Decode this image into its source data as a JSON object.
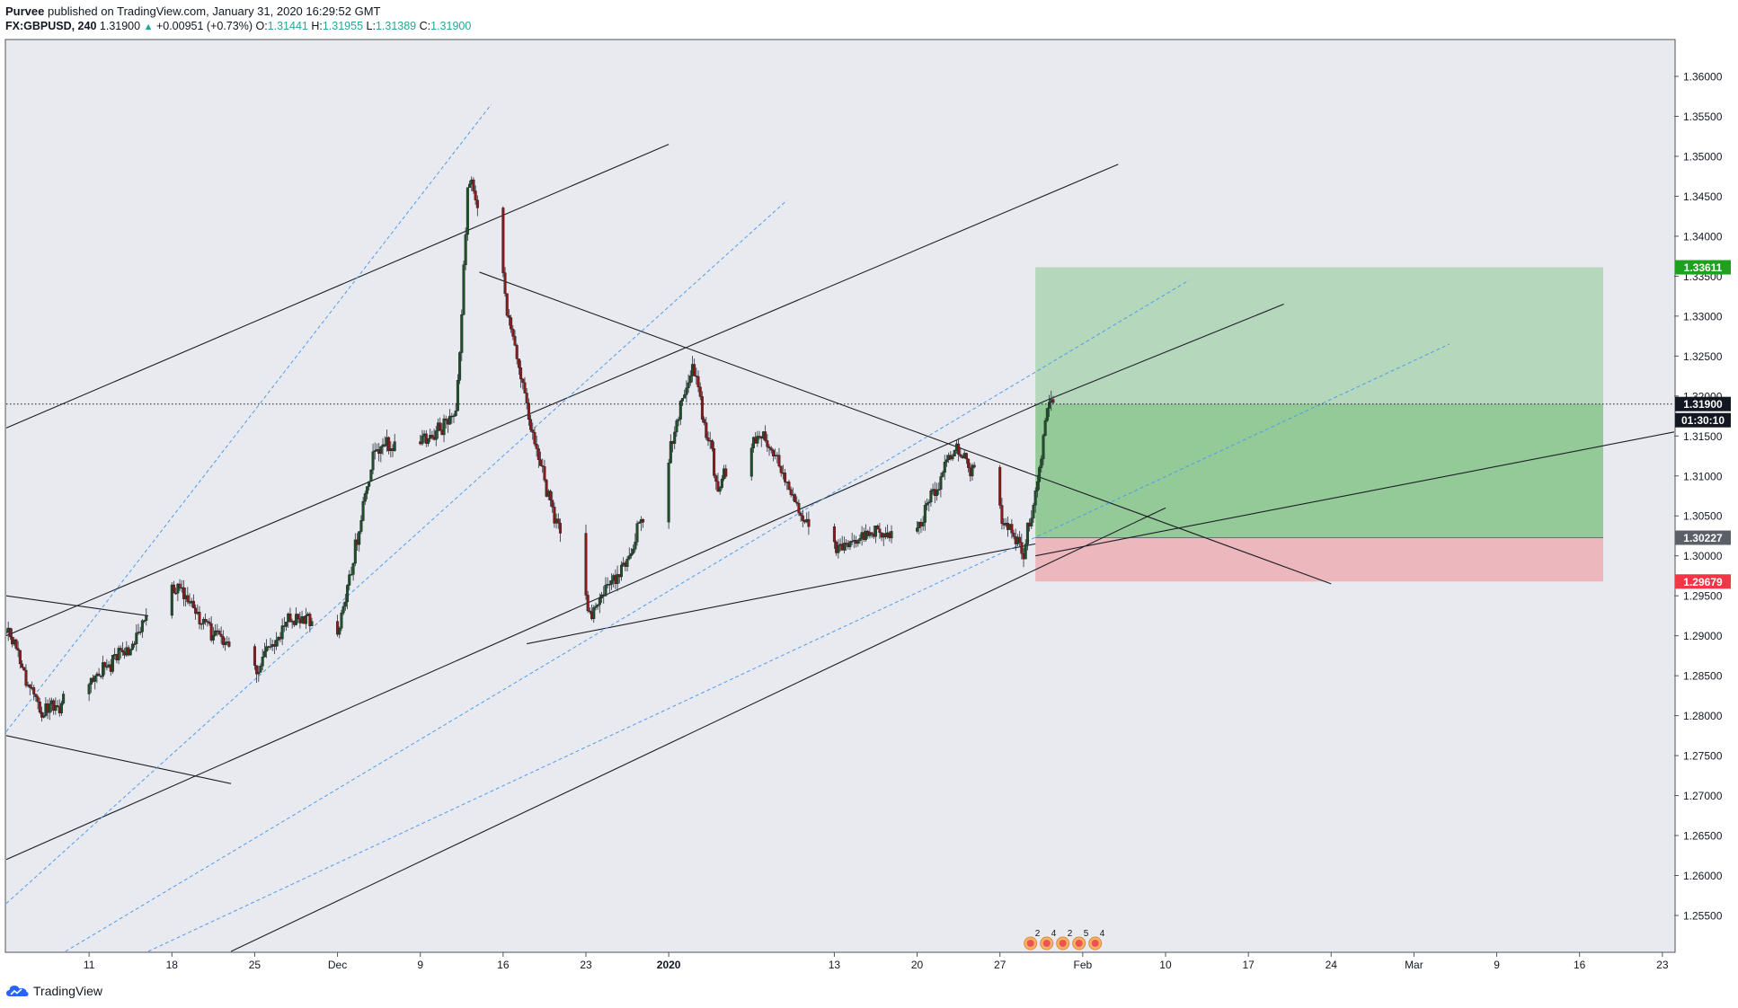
{
  "header": {
    "author": "Purvee",
    "published_text": "published on TradingView.com, January 31, 2020 16:29:52 GMT",
    "symbol": "FX:GBPUSD, 240",
    "last": "1.31900",
    "change": "+0.00951 (+0.73%)",
    "o_label": "O:",
    "o_value": "1.31441",
    "h_label": "H:",
    "h_value": "1.31955",
    "l_label": "L:",
    "l_value": "1.31389",
    "c_label": "C:",
    "c_value": "1.31900"
  },
  "footer": {
    "brand": "TradingView",
    "brand_icon": "tradingview-cloud-icon"
  },
  "colors": {
    "background": "#e8eaef",
    "up": "#26a69a",
    "down": "#ef5350",
    "candle_up": "#1e5128",
    "candle_down": "#8b1a1a",
    "profit_zone": "#4caf50",
    "loss_zone": "#f06f78",
    "target_label": "#1ea11e",
    "stop_label": "#f23645",
    "price_label": "#131722",
    "entry_label": "#5b5f68"
  },
  "chart_data": {
    "type": "candlestick",
    "symbol": "FX:GBPUSD",
    "interval": "240",
    "y_ticks": [
      "1.25500",
      "1.26000",
      "1.26500",
      "1.27000",
      "1.27500",
      "1.28000",
      "1.28500",
      "1.29000",
      "1.29500",
      "1.30000",
      "1.30500",
      "1.31000",
      "1.31500",
      "1.32000",
      "1.32500",
      "1.33000",
      "1.33500",
      "1.34000",
      "1.34500",
      "1.35000",
      "1.35500",
      "1.36000"
    ],
    "ylim": [
      1.2505,
      1.3645
    ],
    "x_ticks": [
      "11",
      "18",
      "25",
      "Dec",
      "9",
      "16",
      "23",
      "2020",
      "13",
      "20",
      "27",
      "Feb",
      "10",
      "17",
      "24",
      "Mar",
      "9",
      "16",
      "23"
    ],
    "x_tick_dates": [
      "2019-11-11",
      "2019-11-18",
      "2019-11-25",
      "2019-12-02",
      "2019-12-09",
      "2019-12-16",
      "2019-12-23",
      "2019-12-30",
      "2020-01-13",
      "2020-01-20",
      "2020-01-27",
      "2020-02-03",
      "2020-02-10",
      "2020-02-17",
      "2020-02-24",
      "2020-03-02",
      "2020-03-09",
      "2020-03-16",
      "2020-03-23"
    ],
    "xlim": [
      "2019-11-04",
      "2020-03-24"
    ],
    "grid": false,
    "key_points": [
      {
        "date": "2019-11-04",
        "price": 1.2905
      },
      {
        "date": "2019-11-07",
        "price": 1.28
      },
      {
        "date": "2019-11-11",
        "price": 1.284
      },
      {
        "date": "2019-11-14",
        "price": 1.288
      },
      {
        "date": "2019-11-18",
        "price": 1.2965
      },
      {
        "date": "2019-11-21",
        "price": 1.291
      },
      {
        "date": "2019-11-25",
        "price": 1.285
      },
      {
        "date": "2019-11-28",
        "price": 1.293
      },
      {
        "date": "2019-12-02",
        "price": 1.29
      },
      {
        "date": "2019-12-05",
        "price": 1.313
      },
      {
        "date": "2019-12-09",
        "price": 1.315
      },
      {
        "date": "2019-12-12",
        "price": 1.317
      },
      {
        "date": "2019-12-13",
        "price": 1.348
      },
      {
        "date": "2019-12-16",
        "price": 1.333
      },
      {
        "date": "2019-12-19",
        "price": 1.311
      },
      {
        "date": "2019-12-23",
        "price": 1.292
      },
      {
        "date": "2019-12-26",
        "price": 1.298
      },
      {
        "date": "2019-12-30",
        "price": 1.314
      },
      {
        "date": "2020-01-01",
        "price": 1.324
      },
      {
        "date": "2020-01-03",
        "price": 1.309
      },
      {
        "date": "2020-01-07",
        "price": 1.316
      },
      {
        "date": "2020-01-10",
        "price": 1.305
      },
      {
        "date": "2020-01-13",
        "price": 1.301
      },
      {
        "date": "2020-01-16",
        "price": 1.303
      },
      {
        "date": "2020-01-20",
        "price": 1.303
      },
      {
        "date": "2020-01-23",
        "price": 1.314
      },
      {
        "date": "2020-01-27",
        "price": 1.305
      },
      {
        "date": "2020-01-29",
        "price": 1.3005
      },
      {
        "date": "2020-01-30",
        "price": 1.3085
      },
      {
        "date": "2020-01-31",
        "price": 1.319
      }
    ],
    "last_price": {
      "value": 1.319,
      "label": "1.31900",
      "countdown": "01:30:10"
    },
    "position": {
      "type": "long",
      "start_date": "2020-01-30",
      "end_date": "2020-03-18",
      "target": 1.33611,
      "entry": 1.30227,
      "stop": 1.29679,
      "target_label": "1.33611",
      "entry_label": "1.30227",
      "stop_label": "1.29679"
    },
    "trendlines": [
      {
        "style": "solid",
        "from": [
          "2019-11-04",
          1.316
        ],
        "to": [
          "2019-12-30",
          1.3515
        ]
      },
      {
        "style": "solid",
        "from": [
          "2019-11-04",
          1.29
        ],
        "to": [
          "2020-02-06",
          1.349
        ]
      },
      {
        "style": "solid",
        "from": [
          "2019-11-04",
          1.262
        ],
        "to": [
          "2020-01-31",
          1.3195
        ]
      },
      {
        "style": "solid",
        "from": [
          "2019-11-04",
          1.295
        ],
        "to": [
          "2019-11-16",
          1.2925
        ]
      },
      {
        "style": "solid",
        "from": [
          "2019-11-04",
          1.2775
        ],
        "to": [
          "2019-11-23",
          1.2715
        ]
      },
      {
        "style": "solid",
        "from": [
          "2019-12-14",
          1.3355
        ],
        "to": [
          "2020-02-24",
          1.2965
        ]
      },
      {
        "style": "solid",
        "from": [
          "2019-12-18",
          1.289
        ],
        "to": [
          "2020-01-30",
          1.3015
        ]
      },
      {
        "style": "solid",
        "from": [
          "2019-11-23",
          1.2505
        ],
        "to": [
          "2020-02-10",
          1.306
        ]
      },
      {
        "style": "solid",
        "from": [
          "2020-01-30",
          1.3
        ],
        "to": [
          "2020-03-24",
          1.3155
        ]
      },
      {
        "style": "solid",
        "from": [
          "2020-01-31",
          1.3195
        ],
        "to": [
          "2020-02-20",
          1.3315
        ]
      },
      {
        "style": "dashed",
        "from": [
          "2019-11-04",
          1.278
        ],
        "to": [
          "2019-12-15",
          1.3565
        ]
      },
      {
        "style": "dashed",
        "from": [
          "2019-11-04",
          1.2565
        ],
        "to": [
          "2020-01-09",
          1.3445
        ]
      },
      {
        "style": "dashed",
        "from": [
          "2019-11-09",
          1.2505
        ],
        "to": [
          "2020-02-12",
          1.3345
        ]
      },
      {
        "style": "dashed",
        "from": [
          "2019-11-16",
          1.2505
        ],
        "to": [
          "2020-03-05",
          1.3265
        ]
      }
    ],
    "events": [
      "2",
      "4",
      "2",
      "5",
      "4"
    ]
  }
}
